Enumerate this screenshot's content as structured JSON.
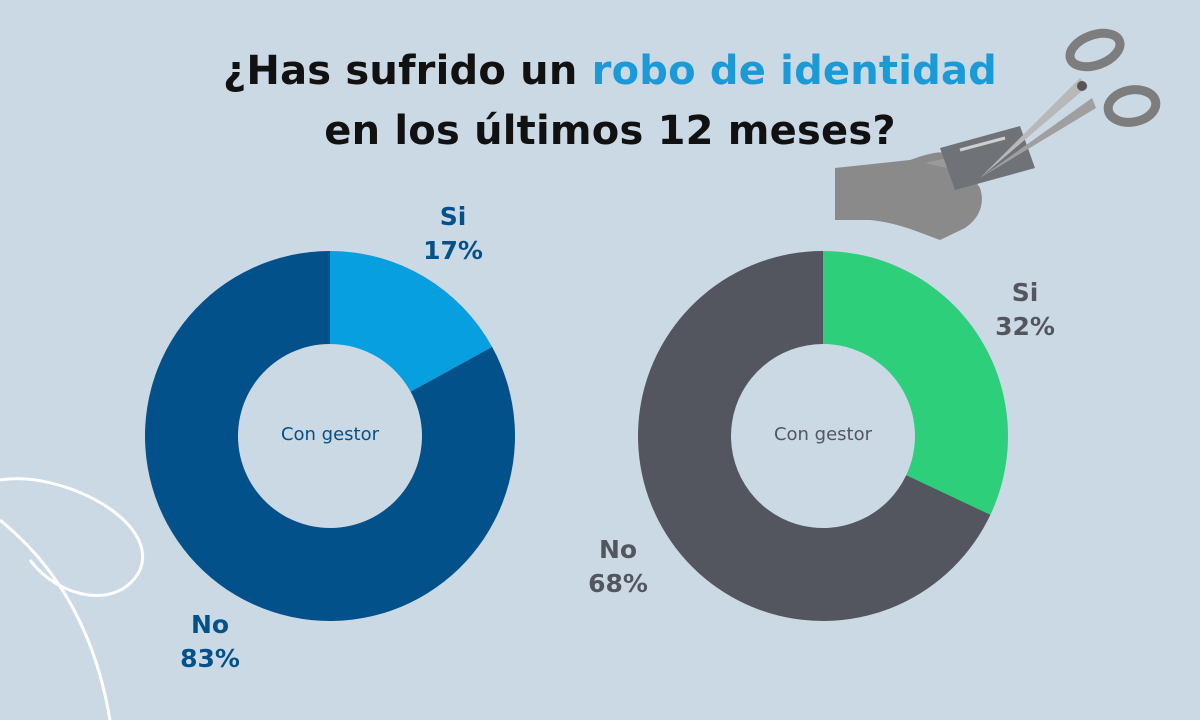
{
  "title": {
    "line1_prefix": "¿Has sufrido un ",
    "line1_highlight": "robo de identidad",
    "line2": "en los últimos 12 meses?"
  },
  "colors": {
    "background": "#cbd9e4",
    "highlight": "#1a9bd7",
    "left_yes": "#089fe0",
    "left_no": "#03518b",
    "left_text": "#03518b",
    "right_yes": "#2dcf7a",
    "right_no": "#53565e",
    "right_text": "#53565e"
  },
  "illustration": {
    "icon": "scissors-cutting-card-icon"
  },
  "chart_data": [
    {
      "type": "pie",
      "center_label": "Con gestor",
      "slices": [
        {
          "label": "Si",
          "value": 17,
          "value_label": "17%"
        },
        {
          "label": "No",
          "value": 83,
          "value_label": "83%"
        }
      ]
    },
    {
      "type": "pie",
      "center_label": "Con gestor",
      "slices": [
        {
          "label": "Si",
          "value": 32,
          "value_label": "32%"
        },
        {
          "label": "No",
          "value": 68,
          "value_label": "68%"
        }
      ]
    }
  ]
}
